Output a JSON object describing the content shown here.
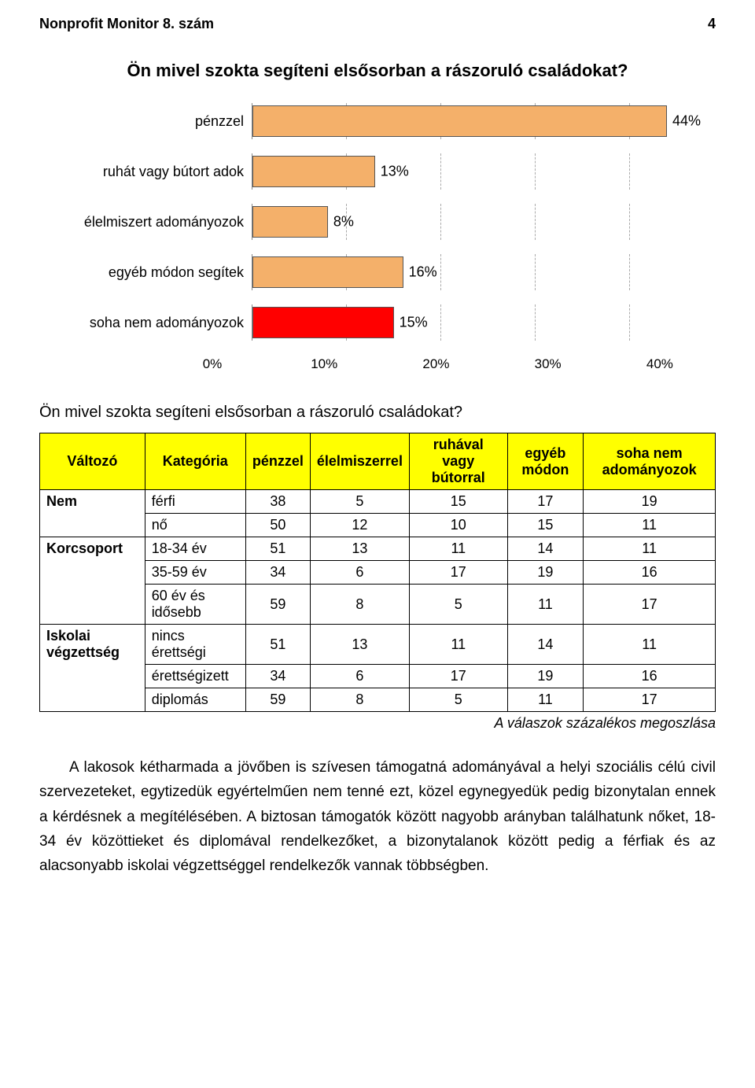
{
  "header": {
    "title": "Nonprofit Monitor 8. szám",
    "page": "4"
  },
  "question1": "Ön mivel szokta segíteni elsősorban a rászoruló családokat?",
  "chart": {
    "type": "bar",
    "orientation": "horizontal",
    "x_max_pct": 45,
    "tick_step_pct": 10,
    "ticks": [
      "0%",
      "10%",
      "20%",
      "30%",
      "40%"
    ],
    "grid_color": "#aaaaaa",
    "bar_border": "#555555",
    "label_fontsize": 18,
    "bars": [
      {
        "label": "pénzzel",
        "value": 44,
        "value_label": "44%",
        "color": "#f4b06a"
      },
      {
        "label": "ruhát vagy bútort adok",
        "value": 13,
        "value_label": "13%",
        "color": "#f4b06a"
      },
      {
        "label": "élelmiszert adományozok",
        "value": 8,
        "value_label": "8%",
        "color": "#f4b06a"
      },
      {
        "label": "egyéb módon segítek",
        "value": 16,
        "value_label": "16%",
        "color": "#f4b06a"
      },
      {
        "label": "soha nem adományozok",
        "value": 15,
        "value_label": "15%",
        "color": "#ff0000"
      }
    ]
  },
  "question2": "Ön mivel szokta segíteni elsősorban a rászoruló családokat?",
  "table": {
    "header_bg": "#ffff00",
    "columns": [
      "Változó",
      "Kategória",
      "pénzzel",
      "élelmiszerrel",
      "ruhával vagy bútorral",
      "egyéb módon",
      "soha nem adományozok"
    ],
    "groups": [
      {
        "name": "Nem",
        "rows": [
          {
            "cat": "férfi",
            "v": [
              "38",
              "5",
              "15",
              "17",
              "19"
            ]
          },
          {
            "cat": "nő",
            "v": [
              "50",
              "12",
              "10",
              "15",
              "11"
            ]
          }
        ]
      },
      {
        "name": "Korcsoport",
        "rows": [
          {
            "cat": "18-34 év",
            "v": [
              "51",
              "13",
              "11",
              "14",
              "11"
            ]
          },
          {
            "cat": "35-59 év",
            "v": [
              "34",
              "6",
              "17",
              "19",
              "16"
            ]
          },
          {
            "cat": "60 év és idősebb",
            "v": [
              "59",
              "8",
              "5",
              "11",
              "17"
            ]
          }
        ]
      },
      {
        "name": "Iskolai végzettség",
        "rows": [
          {
            "cat": "nincs érettségi",
            "v": [
              "51",
              "13",
              "11",
              "14",
              "11"
            ]
          },
          {
            "cat": "érettségizett",
            "v": [
              "34",
              "6",
              "17",
              "19",
              "16"
            ]
          },
          {
            "cat": "diplomás",
            "v": [
              "59",
              "8",
              "5",
              "11",
              "17"
            ]
          }
        ]
      }
    ],
    "caption": "A válaszok százalékos megoszlása"
  },
  "paragraph": "A lakosok kétharmada a jövőben is szívesen támogatná adományával a helyi szociális célú civil szervezeteket, egytizedük egyértelműen nem tenné ezt, közel egynegyedük pedig bizonytalan ennek a kérdésnek a megítélésében. A biztosan támogatók között nagyobb arányban találhatunk nőket, 18-34 év közöttieket és diplomával rendelkezőket, a bizonytalanok között pedig a férfiak és az alacsonyabb iskolai végzettséggel rendelkezők vannak többségben."
}
